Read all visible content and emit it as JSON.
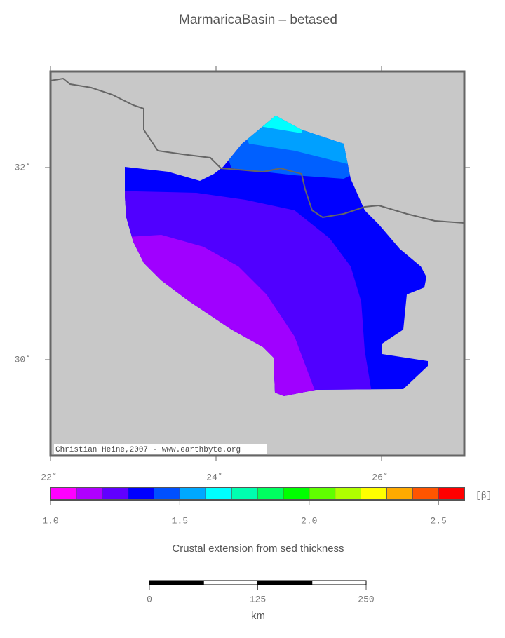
{
  "title": "MarmaricaBasin – betased",
  "map": {
    "xlim": [
      22,
      27
    ],
    "ylim": [
      29,
      33
    ],
    "xticks": [
      {
        "value": 22,
        "label": "22˚"
      },
      {
        "value": 24,
        "label": "24˚"
      },
      {
        "value": 26,
        "label": "26˚"
      }
    ],
    "yticks": [
      {
        "value": 30,
        "label": "30˚"
      },
      {
        "value": 32,
        "label": "32˚"
      }
    ],
    "credit": "Christian Heine,2007 - www.earthbyte.org"
  },
  "colorbar": {
    "range": [
      1.0,
      2.6
    ],
    "colors": [
      "#ff00ff",
      "#b000ff",
      "#6000ff",
      "#0000ff",
      "#0050ff",
      "#00a8ff",
      "#00ffff",
      "#00ffb0",
      "#00ff60",
      "#00ff00",
      "#60ff00",
      "#b0ff00",
      "#ffff00",
      "#ffaa00",
      "#ff5500",
      "#ff0000"
    ],
    "ticks": [
      {
        "value": 1.0,
        "label": "1.0"
      },
      {
        "value": 1.5,
        "label": "1.5"
      },
      {
        "value": 2.0,
        "label": "2.0"
      },
      {
        "value": 2.5,
        "label": "2.5"
      }
    ],
    "unit": "[β]",
    "caption": "Crustal extension from sed thickness"
  },
  "scalebar": {
    "ticks": [
      0,
      125,
      250
    ],
    "unit": "km"
  }
}
